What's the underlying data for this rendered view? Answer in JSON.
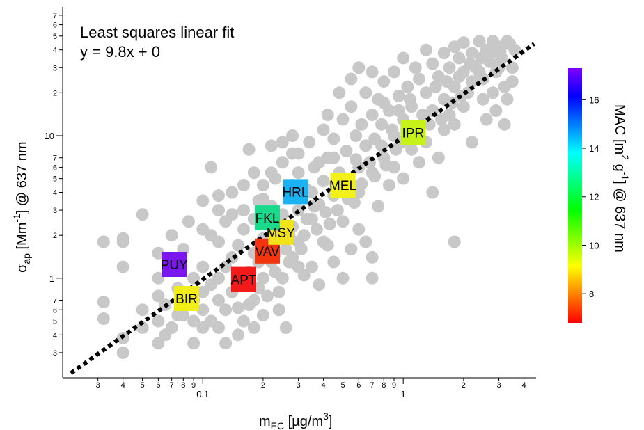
{
  "chart_data": {
    "type": "scatter",
    "x_scale": "log",
    "y_scale": "log",
    "xlim": [
      0.02,
      4.6
    ],
    "ylim": [
      0.2,
      80
    ],
    "xlabel_main": "m",
    "xlabel_sub": "EC",
    "xlabel_unit": " [µg/m",
    "xlabel_sup": "3",
    "xlabel_close": "]",
    "ylabel_sigma": "σ",
    "ylabel_sub": "ap",
    "ylabel_unit": " [Mm",
    "ylabel_sup": "-1",
    "ylabel_rest": "] @ 637 nm",
    "x_major_ticks": [
      {
        "value": 0.1,
        "label": "0.1"
      },
      {
        "value": 1,
        "label": "1"
      }
    ],
    "x_minor_ticks": [
      {
        "value": 0.03,
        "label": "3"
      },
      {
        "value": 0.04,
        "label": "4"
      },
      {
        "value": 0.05,
        "label": "5"
      },
      {
        "value": 0.06,
        "label": "6"
      },
      {
        "value": 0.07,
        "label": "7"
      },
      {
        "value": 0.08,
        "label": "8"
      },
      {
        "value": 0.09,
        "label": "9"
      },
      {
        "value": 0.2,
        "label": "2"
      },
      {
        "value": 0.3,
        "label": "3"
      },
      {
        "value": 0.4,
        "label": "4"
      },
      {
        "value": 0.5,
        "label": "5"
      },
      {
        "value": 0.6,
        "label": "6"
      },
      {
        "value": 0.7,
        "label": "7"
      },
      {
        "value": 0.8,
        "label": "8"
      },
      {
        "value": 0.9,
        "label": "9"
      },
      {
        "value": 2,
        "label": "2"
      },
      {
        "value": 3,
        "label": "3"
      },
      {
        "value": 4,
        "label": "4"
      }
    ],
    "y_major_ticks": [
      {
        "value": 1,
        "label": "1"
      },
      {
        "value": 10,
        "label": "10"
      }
    ],
    "y_minor_ticks": [
      {
        "value": 0.3,
        "label": "3"
      },
      {
        "value": 0.4,
        "label": "4"
      },
      {
        "value": 0.5,
        "label": "5"
      },
      {
        "value": 0.6,
        "label": "6"
      },
      {
        "value": 0.7,
        "label": "7"
      },
      {
        "value": 2,
        "label": "2"
      },
      {
        "value": 3,
        "label": "3"
      },
      {
        "value": 4,
        "label": "4"
      },
      {
        "value": 5,
        "label": "5"
      },
      {
        "value": 6,
        "label": "6"
      },
      {
        "value": 7,
        "label": "7"
      },
      {
        "value": 20,
        "label": "2"
      },
      {
        "value": 30,
        "label": "3"
      },
      {
        "value": 40,
        "label": "4"
      },
      {
        "value": 50,
        "label": "5"
      },
      {
        "value": 60,
        "label": "6"
      },
      {
        "value": 70,
        "label": "7"
      }
    ],
    "annotation_line1": "Least squares linear fit",
    "annotation_line2": "y  = 9.8x + 0",
    "fit": {
      "slope": 9.8,
      "intercept": 0,
      "x_range": [
        0.022,
        4.5
      ]
    },
    "background_points_color": "#c8c8c8",
    "background_points": [
      [
        0.032,
        0.52
      ],
      [
        0.032,
        0.68
      ],
      [
        0.032,
        1.8
      ],
      [
        0.04,
        0.3
      ],
      [
        0.04,
        0.38
      ],
      [
        0.04,
        1.2
      ],
      [
        0.04,
        1.8
      ],
      [
        0.04,
        1.9
      ],
      [
        0.05,
        0.45
      ],
      [
        0.05,
        0.6
      ],
      [
        0.05,
        2.8
      ],
      [
        0.06,
        1.0
      ],
      [
        0.06,
        1.5
      ],
      [
        0.06,
        0.35
      ],
      [
        0.065,
        0.4
      ],
      [
        0.07,
        2.0
      ],
      [
        0.075,
        0.55
      ],
      [
        0.08,
        0.7
      ],
      [
        0.08,
        1.6
      ],
      [
        0.085,
        2.5
      ],
      [
        0.09,
        0.5
      ],
      [
        0.09,
        1.0
      ],
      [
        0.1,
        0.8
      ],
      [
        0.1,
        1.2
      ],
      [
        0.1,
        2.2
      ],
      [
        0.1,
        3.5
      ],
      [
        0.11,
        0.5
      ],
      [
        0.11,
        6.0
      ],
      [
        0.12,
        1.0
      ],
      [
        0.12,
        1.8
      ],
      [
        0.12,
        3.0
      ],
      [
        0.13,
        0.6
      ],
      [
        0.13,
        2.5
      ],
      [
        0.14,
        1.4
      ],
      [
        0.14,
        4.0
      ],
      [
        0.15,
        0.9
      ],
      [
        0.15,
        1.7
      ],
      [
        0.16,
        2.2
      ],
      [
        0.16,
        3.0
      ],
      [
        0.17,
        1.1
      ],
      [
        0.17,
        8.0
      ],
      [
        0.18,
        0.7
      ],
      [
        0.18,
        1.5
      ],
      [
        0.18,
        2.6
      ],
      [
        0.19,
        3.5
      ],
      [
        0.2,
        1.0
      ],
      [
        0.2,
        1.9
      ],
      [
        0.2,
        4.5
      ],
      [
        0.21,
        2.4
      ],
      [
        0.22,
        1.3
      ],
      [
        0.22,
        3.2
      ],
      [
        0.23,
        5.0
      ],
      [
        0.24,
        0.8
      ],
      [
        0.24,
        2.0
      ],
      [
        0.25,
        2.8
      ],
      [
        0.25,
        6.5
      ],
      [
        0.26,
        1.6
      ],
      [
        0.27,
        3.8
      ],
      [
        0.28,
        2.3
      ],
      [
        0.28,
        7.5
      ],
      [
        0.3,
        1.2
      ],
      [
        0.3,
        3.0
      ],
      [
        0.3,
        5.5
      ],
      [
        0.32,
        2.0
      ],
      [
        0.33,
        4.2
      ],
      [
        0.34,
        9.0
      ],
      [
        0.35,
        2.6
      ],
      [
        0.36,
        6.0
      ],
      [
        0.38,
        3.3
      ],
      [
        0.4,
        1.8
      ],
      [
        0.4,
        4.8
      ],
      [
        0.4,
        11
      ],
      [
        0.42,
        7.0
      ],
      [
        0.45,
        3.8
      ],
      [
        0.45,
        9.5
      ],
      [
        0.48,
        5.5
      ],
      [
        0.5,
        2.5
      ],
      [
        0.5,
        13
      ],
      [
        0.52,
        7.8
      ],
      [
        0.55,
        4.5
      ],
      [
        0.55,
        16
      ],
      [
        0.58,
        10
      ],
      [
        0.6,
        6.0
      ],
      [
        0.62,
        12
      ],
      [
        0.65,
        8.5
      ],
      [
        0.65,
        20
      ],
      [
        0.7,
        5.5
      ],
      [
        0.7,
        14
      ],
      [
        0.72,
        9.5
      ],
      [
        0.75,
        18
      ],
      [
        0.78,
        12
      ],
      [
        0.8,
        7.0
      ],
      [
        0.8,
        24
      ],
      [
        0.85,
        15
      ],
      [
        0.9,
        10
      ],
      [
        0.9,
        28
      ],
      [
        0.95,
        19
      ],
      [
        1.0,
        13
      ],
      [
        1.0,
        35
      ],
      [
        1.05,
        22
      ],
      [
        1.1,
        16
      ],
      [
        1.15,
        30
      ],
      [
        1.2,
        11
      ],
      [
        1.2,
        25
      ],
      [
        1.3,
        20
      ],
      [
        1.3,
        40
      ],
      [
        1.4,
        15
      ],
      [
        1.4,
        32
      ],
      [
        1.5,
        26
      ],
      [
        1.6,
        18
      ],
      [
        1.6,
        38
      ],
      [
        1.7,
        30
      ],
      [
        1.8,
        22
      ],
      [
        1.8,
        42
      ],
      [
        1.9,
        35
      ],
      [
        2.0,
        28
      ],
      [
        2.0,
        45
      ],
      [
        2.1,
        20
      ],
      [
        2.2,
        38
      ],
      [
        2.3,
        30
      ],
      [
        2.4,
        46
      ],
      [
        2.5,
        25
      ],
      [
        2.6,
        40
      ],
      [
        2.7,
        33
      ],
      [
        2.8,
        46
      ],
      [
        2.9,
        28
      ],
      [
        3.0,
        42
      ],
      [
        3.1,
        35
      ],
      [
        3.2,
        12
      ],
      [
        3.3,
        46
      ],
      [
        3.5,
        30
      ],
      [
        3.6,
        40
      ],
      [
        0.07,
        1.15
      ],
      [
        0.3,
        1.8
      ],
      [
        0.35,
        1.2
      ],
      [
        0.38,
        0.9
      ],
      [
        0.45,
        1.3
      ],
      [
        0.5,
        1.0
      ],
      [
        0.55,
        1.6
      ],
      [
        0.65,
        1.8
      ],
      [
        0.7,
        1.4
      ],
      [
        0.6,
        2.2
      ],
      [
        0.42,
        1.7
      ],
      [
        0.32,
        1.05
      ],
      [
        0.28,
        1.4
      ],
      [
        0.25,
        1.0
      ],
      [
        0.24,
        0.6
      ],
      [
        0.26,
        0.45
      ],
      [
        0.2,
        0.55
      ],
      [
        0.18,
        0.45
      ],
      [
        0.16,
        0.5
      ],
      [
        0.15,
        0.4
      ],
      [
        0.13,
        0.35
      ],
      [
        0.12,
        0.45
      ],
      [
        0.1,
        0.45
      ],
      [
        0.09,
        0.35
      ],
      [
        0.07,
        0.45
      ],
      [
        0.06,
        0.5
      ],
      [
        0.2,
        3.6
      ],
      [
        0.16,
        4.5
      ],
      [
        0.22,
        5.5
      ],
      [
        0.28,
        4.5
      ],
      [
        0.35,
        4.0
      ],
      [
        0.3,
        7.5
      ],
      [
        0.25,
        9.0
      ],
      [
        0.38,
        6.5
      ],
      [
        0.45,
        7.0
      ],
      [
        0.52,
        5.0
      ],
      [
        0.6,
        4.0
      ],
      [
        0.75,
        3.2
      ],
      [
        0.85,
        4.5
      ],
      [
        1.0,
        5.0
      ],
      [
        1.2,
        6.5
      ],
      [
        1.5,
        7.0
      ],
      [
        1.8,
        12
      ],
      [
        2.0,
        16
      ],
      [
        2.5,
        18
      ],
      [
        2.8,
        20
      ],
      [
        3.2,
        22
      ],
      [
        3.5,
        24
      ],
      [
        0.9,
        6.0
      ],
      [
        1.1,
        8.0
      ],
      [
        1.3,
        9.0
      ],
      [
        1.6,
        11
      ],
      [
        0.48,
        20
      ],
      [
        0.55,
        25
      ],
      [
        0.42,
        14
      ],
      [
        0.6,
        30
      ],
      [
        0.7,
        28
      ],
      [
        0.8,
        17
      ],
      [
        0.95,
        15
      ],
      [
        1.7,
        14
      ],
      [
        2.2,
        9.0
      ],
      [
        2.6,
        13
      ],
      [
        2.9,
        15
      ],
      [
        3.3,
        18
      ],
      [
        1.4,
        4.0
      ],
      [
        0.7,
        1.0
      ],
      [
        1.8,
        1.8
      ],
      [
        0.28,
        10
      ],
      [
        0.22,
        8.5
      ],
      [
        0.18,
        5.5
      ],
      [
        0.14,
        2.8
      ],
      [
        0.12,
        3.8
      ],
      [
        0.11,
        2.0
      ],
      [
        0.13,
        1.2
      ],
      [
        0.16,
        1.0
      ],
      [
        0.19,
        1.3
      ],
      [
        0.21,
        0.75
      ],
      [
        0.23,
        1.5
      ],
      [
        0.27,
        2.0
      ],
      [
        0.33,
        2.6
      ],
      [
        0.36,
        3.2
      ],
      [
        0.41,
        2.9
      ],
      [
        0.46,
        4.6
      ],
      [
        0.53,
        3.6
      ],
      [
        0.58,
        6.8
      ],
      [
        0.68,
        6.5
      ],
      [
        0.78,
        8.5
      ],
      [
        0.88,
        11
      ],
      [
        0.98,
        9.0
      ],
      [
        1.08,
        18
      ],
      [
        1.25,
        14
      ],
      [
        1.45,
        22
      ],
      [
        1.65,
        24
      ],
      [
        1.9,
        26
      ],
      [
        2.15,
        32
      ],
      [
        2.45,
        35
      ],
      [
        2.75,
        38
      ],
      [
        3.05,
        39
      ],
      [
        3.4,
        44
      ],
      [
        3.0,
        30
      ],
      [
        2.4,
        28
      ],
      [
        2.2,
        24
      ],
      [
        1.95,
        19
      ],
      [
        1.75,
        17
      ],
      [
        1.55,
        13
      ],
      [
        1.35,
        12
      ],
      [
        1.15,
        11
      ],
      [
        0.92,
        8.0
      ],
      [
        0.82,
        6.2
      ],
      [
        0.72,
        5.2
      ],
      [
        0.62,
        4.6
      ],
      [
        0.57,
        3.4
      ],
      [
        0.47,
        3.0
      ],
      [
        0.43,
        2.4
      ],
      [
        0.37,
        2.2
      ],
      [
        0.31,
        1.6
      ],
      [
        0.27,
        1.3
      ],
      [
        0.23,
        1.1
      ],
      [
        0.19,
        0.85
      ],
      [
        0.17,
        0.65
      ],
      [
        0.15,
        0.62
      ],
      [
        0.14,
        0.8
      ],
      [
        0.12,
        0.7
      ],
      [
        0.11,
        0.9
      ],
      [
        0.1,
        0.6
      ],
      [
        0.09,
        0.7
      ],
      [
        0.08,
        0.55
      ],
      [
        0.075,
        0.85
      ],
      [
        0.065,
        0.65
      ],
      [
        0.06,
        0.75
      ]
    ],
    "sites": [
      {
        "label": "PUY",
        "x": 0.072,
        "y": 1.25,
        "mac": 17.0,
        "color": "#7a16ee"
      },
      {
        "label": "BIR",
        "x": 0.083,
        "y": 0.72,
        "mac": 9.0,
        "color": "#f2ee1a"
      },
      {
        "label": "APT",
        "x": 0.16,
        "y": 0.98,
        "mac": 7.2,
        "color": "#f21a1a"
      },
      {
        "label": "VAV",
        "x": 0.21,
        "y": 1.55,
        "mac": 7.6,
        "color": "#f2340f"
      },
      {
        "label": "MSY",
        "x": 0.245,
        "y": 2.1,
        "mac": 9.0,
        "color": "#f2e21a"
      },
      {
        "label": "FKL",
        "x": 0.21,
        "y": 2.65,
        "mac": 11.8,
        "color": "#1ad98a"
      },
      {
        "label": "HRL",
        "x": 0.29,
        "y": 4.05,
        "mac": 14.0,
        "color": "#1ab2f2"
      },
      {
        "label": "MEL",
        "x": 0.5,
        "y": 4.5,
        "mac": 9.2,
        "color": "#f2f21a"
      },
      {
        "label": "IPR",
        "x": 1.12,
        "y": 10.5,
        "mac": 9.9,
        "color": "#c6f21a"
      }
    ],
    "colorbar": {
      "title_pre": "MAC [m",
      "title_sup1": "2",
      "title_mid": " g",
      "title_sup2": "-1",
      "title_post": "] @ 637 nm",
      "range": [
        6.8,
        17.3
      ],
      "ticks": [
        {
          "value": 8,
          "label": "8"
        },
        {
          "value": 10,
          "label": "10"
        },
        {
          "value": 12,
          "label": "12"
        },
        {
          "value": 14,
          "label": "14"
        },
        {
          "value": 16,
          "label": "16"
        }
      ],
      "colors": [
        "#ff0000",
        "#ff7f00",
        "#ffff00",
        "#7fff00",
        "#00ff00",
        "#00ff7f",
        "#00ffff",
        "#007fff",
        "#0000ff",
        "#7f00ff"
      ]
    }
  }
}
